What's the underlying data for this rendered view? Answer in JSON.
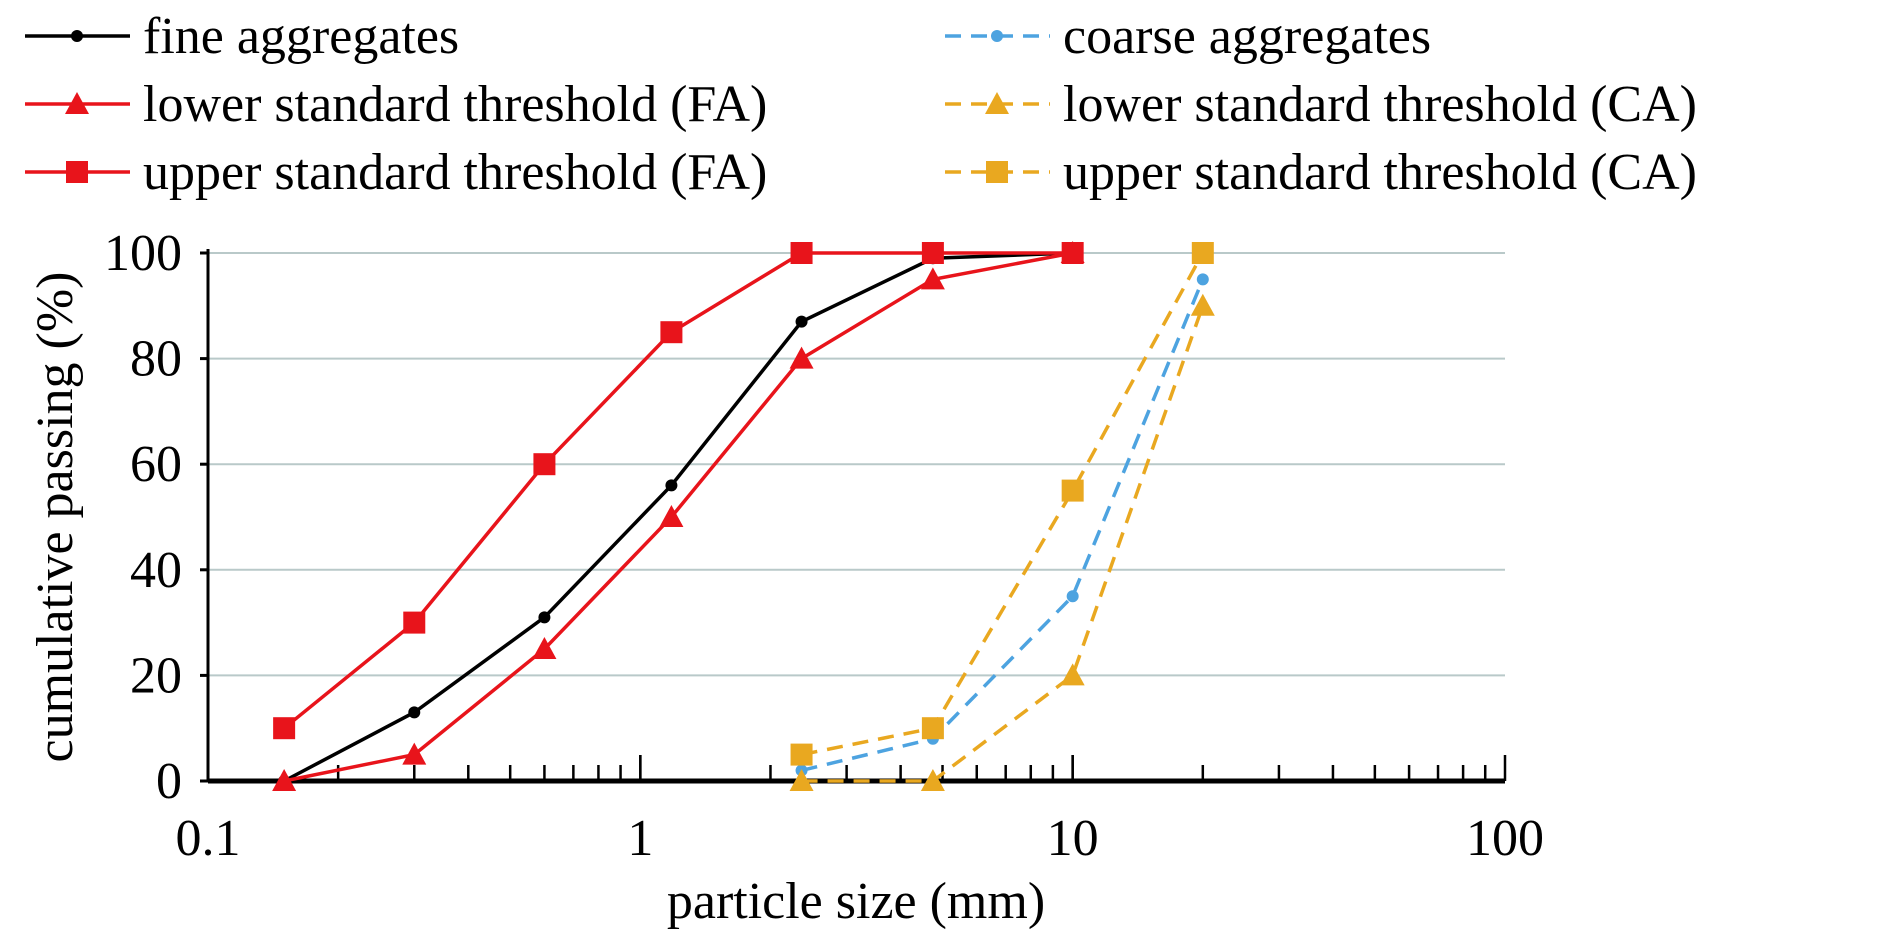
{
  "chart_data": {
    "type": "line",
    "title": "",
    "xlabel": "particle size (mm)",
    "ylabel": "cumulative passing (%)",
    "xscale": "log",
    "xlim": [
      0.1,
      100
    ],
    "ylim": [
      0,
      100
    ],
    "xticks": [
      "0.1",
      "1",
      "10",
      "100"
    ],
    "yticks": [
      "0",
      "20",
      "40",
      "60",
      "80",
      "100"
    ],
    "grid": "horizontal",
    "legend_placement": "top",
    "series": [
      {
        "name": "fine aggregates",
        "color": "#000000",
        "dash": false,
        "marker": "circle",
        "x": [
          0.15,
          0.3,
          0.6,
          1.18,
          2.36,
          4.75,
          10
        ],
        "y": [
          0,
          13,
          31,
          56,
          87,
          99,
          100
        ]
      },
      {
        "name": "lower standard threshold (FA)",
        "color": "#e8141b",
        "dash": false,
        "marker": "triangle",
        "x": [
          0.15,
          0.3,
          0.6,
          1.18,
          2.36,
          4.75,
          10
        ],
        "y": [
          0,
          5,
          25,
          50,
          80,
          95,
          100
        ]
      },
      {
        "name": "upper standard threshold (FA)",
        "color": "#e8141b",
        "dash": false,
        "marker": "square",
        "x": [
          0.15,
          0.3,
          0.6,
          1.18,
          2.36,
          4.75,
          10
        ],
        "y": [
          10,
          30,
          60,
          85,
          100,
          100,
          100
        ]
      },
      {
        "name": "coarse aggregates",
        "color": "#4da3e0",
        "dash": true,
        "marker": "circle",
        "x": [
          2.36,
          4.75,
          10,
          20
        ],
        "y": [
          2,
          8,
          35,
          95
        ]
      },
      {
        "name": "lower standard threshold (CA)",
        "color": "#e9a820",
        "dash": true,
        "marker": "triangle",
        "x": [
          2.36,
          4.75,
          10,
          20
        ],
        "y": [
          0,
          0,
          20,
          90
        ]
      },
      {
        "name": "upper standard threshold (CA)",
        "color": "#e9a820",
        "dash": true,
        "marker": "square",
        "x": [
          2.36,
          4.75,
          10,
          20
        ],
        "y": [
          5,
          10,
          55,
          100
        ]
      }
    ]
  }
}
